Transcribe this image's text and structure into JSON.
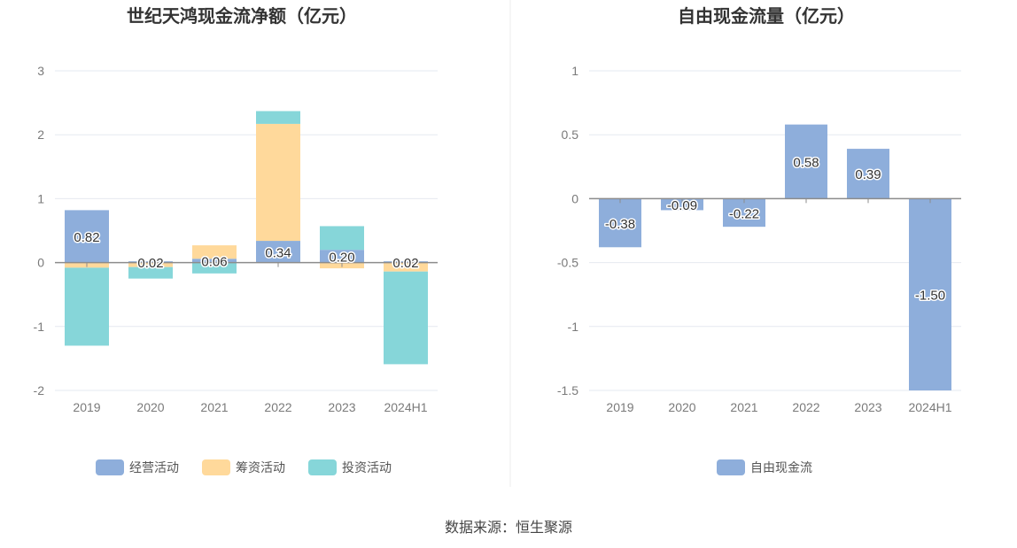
{
  "source": "数据来源：恒生聚源",
  "chart_data": [
    {
      "type": "bar",
      "stacked": true,
      "title": "世纪天鸿现金流净额（亿元）",
      "categories": [
        "2019",
        "2020",
        "2021",
        "2022",
        "2023",
        "2024H1"
      ],
      "yticks": [
        "3",
        "2",
        "1",
        "0",
        "-1",
        "-2"
      ],
      "ylim": [
        -2,
        3
      ],
      "series": [
        {
          "name": "经营活动",
          "color": "#8eaedb",
          "values": [
            0.82,
            0.02,
            0.06,
            0.34,
            0.2,
            0.02
          ]
        },
        {
          "name": "筹资活动",
          "color": "#ffd99b",
          "values": [
            -0.08,
            -0.07,
            0.21,
            1.83,
            -0.09,
            -0.14
          ]
        },
        {
          "name": "投资活动",
          "color": "#86d6d9",
          "values": [
            -1.22,
            -0.18,
            -0.17,
            0.2,
            0.37,
            -1.45
          ]
        }
      ],
      "data_labels": [
        "0.82",
        "0.02",
        "0.06",
        "0.34",
        "0.20",
        "0.02"
      ],
      "legend": "bottom",
      "grid": true
    },
    {
      "type": "bar",
      "title": "自由现金流量（亿元）",
      "categories": [
        "2019",
        "2020",
        "2021",
        "2022",
        "2023",
        "2024H1"
      ],
      "yticks": [
        "1",
        "0.5",
        "0",
        "-0.5",
        "-1",
        "-1.5"
      ],
      "ylim": [
        -1.5,
        1
      ],
      "series": [
        {
          "name": "自由现金流",
          "color": "#8eaedb",
          "values": [
            -0.38,
            -0.09,
            -0.22,
            0.58,
            0.39,
            -1.5
          ]
        }
      ],
      "data_labels": [
        "-0.38",
        "-0.09",
        "-0.22",
        "0.58",
        "0.39",
        "-1.50"
      ],
      "legend": "bottom",
      "grid": true
    }
  ]
}
